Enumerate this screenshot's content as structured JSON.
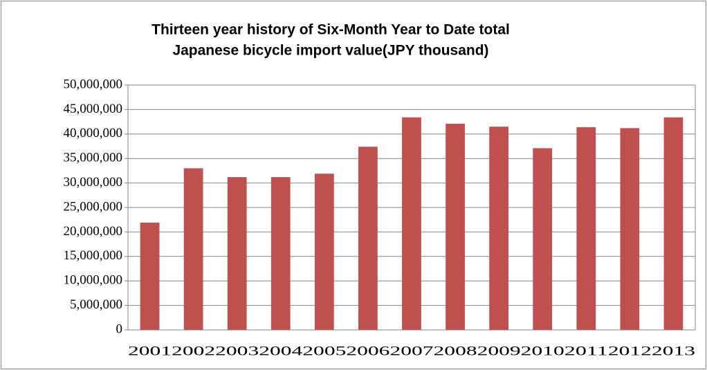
{
  "chart_data": {
    "type": "bar",
    "title": [
      "Thirteen year history of Six-Month Year to Date total",
      "Japanese bicycle import value(JPY thousand)"
    ],
    "categories": [
      "2001",
      "2002",
      "2003",
      "2004",
      "2005",
      "2006",
      "2007",
      "2008",
      "2009",
      "2010",
      "2011",
      "2012",
      "2013"
    ],
    "values": [
      21900000,
      33000000,
      31200000,
      31200000,
      31900000,
      37400000,
      43400000,
      42100000,
      41500000,
      37100000,
      41400000,
      41200000,
      43400000
    ],
    "color": "#c0504d",
    "ylim": [
      0,
      50000000
    ],
    "yticks": [
      0,
      {
        "value": 5000000,
        "label": "5,000,000"
      },
      {
        "value": 10000000,
        "label": "10,000,000"
      },
      {
        "value": 15000000,
        "label": "15,000,000"
      },
      {
        "value": 20000000,
        "label": "20,000,000"
      },
      {
        "value": 25000000,
        "label": "25,000,000"
      },
      {
        "value": 30000000,
        "label": "30,000,000"
      },
      {
        "value": 35000000,
        "label": "35,000,000"
      },
      {
        "value": 40000000,
        "label": "40,000,000"
      },
      {
        "value": 45000000,
        "label": "45,000,000"
      },
      {
        "value": 50000000,
        "label": "50,000,000"
      }
    ],
    "grid": true
  }
}
